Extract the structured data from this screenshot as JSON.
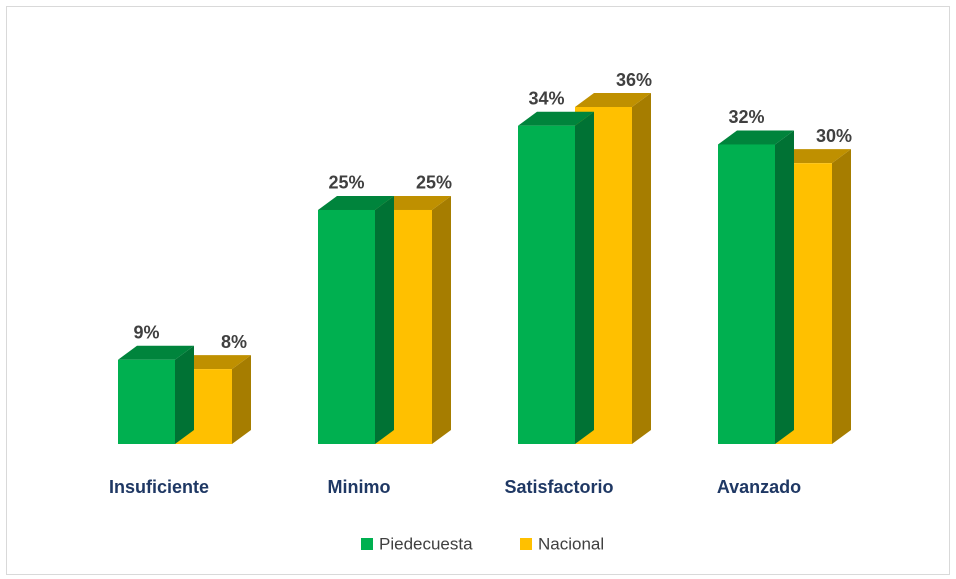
{
  "chart_data": {
    "type": "bar3d",
    "categories": [
      "Insuficiente",
      "Minimo",
      "Satisfactorio",
      "Avanzado"
    ],
    "series": [
      {
        "name": "Piedecuesta",
        "color": "#00b050",
        "values": [
          9,
          25,
          34,
          32
        ],
        "value_labels": [
          "9%",
          "25%",
          "34%",
          "32%"
        ]
      },
      {
        "name": "Nacional",
        "color": "#ffc000",
        "values": [
          8,
          25,
          36,
          30
        ],
        "value_labels": [
          "8%",
          "25%",
          "36%",
          "30%"
        ]
      }
    ],
    "legend": "bottom"
  }
}
